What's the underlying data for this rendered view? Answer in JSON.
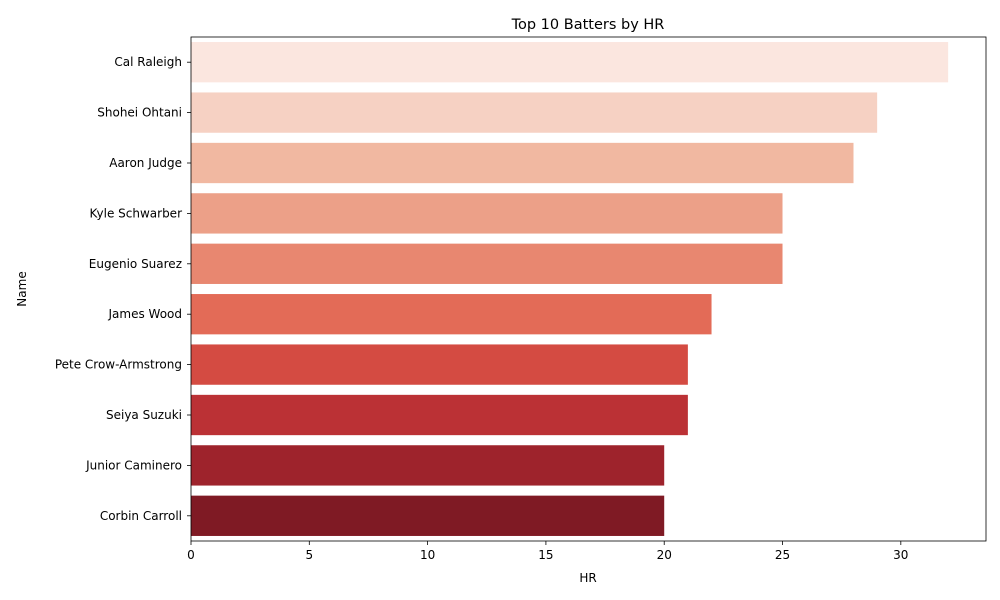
{
  "chart_data": {
    "type": "bar",
    "orientation": "horizontal",
    "title": "Top 10 Batters by HR",
    "xlabel": "HR",
    "ylabel": "Name",
    "categories": [
      "Cal Raleigh",
      "Shohei Ohtani",
      "Aaron Judge",
      "Kyle Schwarber",
      "Eugenio Suarez",
      "James Wood",
      "Pete Crow-Armstrong",
      "Seiya Suzuki",
      "Junior Caminero",
      "Corbin Carroll"
    ],
    "values": [
      32,
      29,
      28,
      25,
      25,
      22,
      21,
      21,
      20,
      20
    ],
    "colors": [
      "#fbe6df",
      "#f6d1c3",
      "#f1b8a1",
      "#eca088",
      "#e88770",
      "#e36b57",
      "#d44b42",
      "#bb3135",
      "#9e232c",
      "#7f1a24"
    ],
    "xlim": [
      0,
      33.6
    ],
    "xticks": [
      0,
      5,
      10,
      15,
      20,
      25,
      30
    ],
    "grid": false
  }
}
